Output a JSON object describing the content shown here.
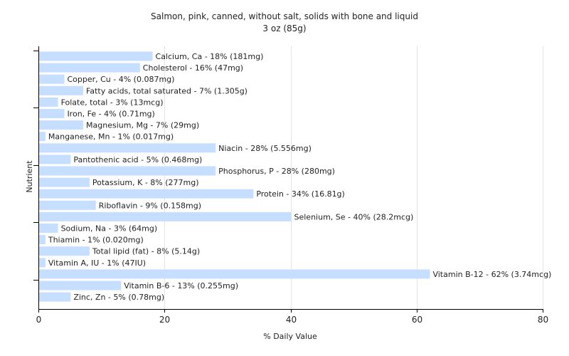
{
  "chart_data": {
    "type": "bar",
    "orientation": "horizontal",
    "title": "Salmon, pink, canned, without salt, solids with bone and liquid",
    "subtitle": "3 oz (85g)",
    "xlabel": "% Daily Value",
    "ylabel": "Nutrient",
    "xlim": [
      0,
      80
    ],
    "xticks": [
      0,
      20,
      40,
      60,
      80
    ],
    "grid": true,
    "bar_color": "#c6deff",
    "categories": [
      "Calcium, Ca",
      "Cholesterol",
      "Copper, Cu",
      "Fatty acids, total saturated",
      "Folate, total",
      "Iron, Fe",
      "Magnesium, Mg",
      "Manganese, Mn",
      "Niacin",
      "Pantothenic acid",
      "Phosphorus, P",
      "Potassium, K",
      "Protein",
      "Riboflavin",
      "Selenium, Se",
      "Sodium, Na",
      "Thiamin",
      "Total lipid (fat)",
      "Vitamin A, IU",
      "Vitamin B-12",
      "Vitamin B-6",
      "Zinc, Zn"
    ],
    "values": [
      18,
      16,
      4,
      7,
      3,
      4,
      7,
      1,
      28,
      5,
      28,
      8,
      34,
      9,
      40,
      3,
      1,
      8,
      1,
      62,
      13,
      5
    ],
    "labels": [
      "Calcium, Ca - 18% (181mg)",
      "Cholesterol - 16% (47mg)",
      "Copper, Cu - 4% (0.087mg)",
      "Fatty acids, total saturated - 7% (1.305g)",
      "Folate, total - 3% (13mcg)",
      "Iron, Fe - 4% (0.71mg)",
      "Magnesium, Mg - 7% (29mg)",
      "Manganese, Mn - 1% (0.017mg)",
      "Niacin - 28% (5.556mg)",
      "Pantothenic acid - 5% (0.468mg)",
      "Phosphorus, P - 28% (280mg)",
      "Potassium, K - 8% (277mg)",
      "Protein - 34% (16.81g)",
      "Riboflavin - 9% (0.158mg)",
      "Selenium, Se - 40% (28.2mcg)",
      "Sodium, Na - 3% (64mg)",
      "Thiamin - 1% (0.020mg)",
      "Total lipid (fat) - 8% (5.14g)",
      "Vitamin A, IU - 1% (47IU)",
      "Vitamin B-12 - 62% (3.74mcg)",
      "Vitamin B-6 - 13% (0.255mg)",
      "Zinc, Zn - 5% (0.78mg)"
    ]
  }
}
